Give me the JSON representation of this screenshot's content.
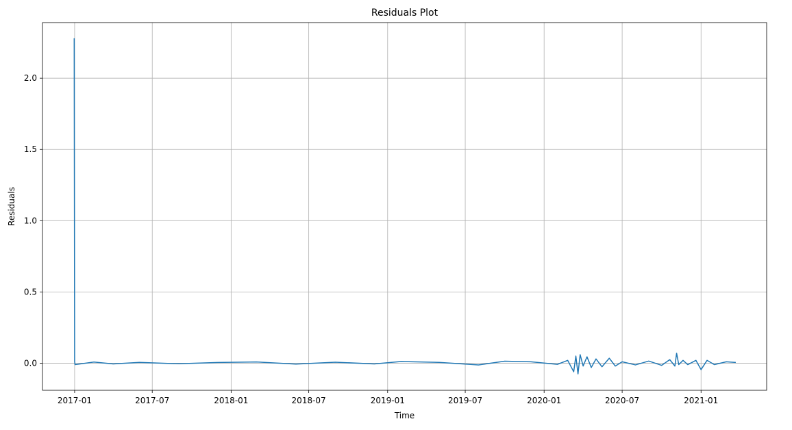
{
  "chart_data": {
    "type": "line",
    "title": "Residuals Plot",
    "xlabel": "Time",
    "ylabel": "Residuals",
    "x_ticks": [
      "2017-01",
      "2017-07",
      "2018-01",
      "2018-07",
      "2019-01",
      "2019-07",
      "2020-01",
      "2020-07",
      "2021-01"
    ],
    "y_ticks": [
      "0.0",
      "0.5",
      "1.0",
      "1.5",
      "2.0"
    ],
    "xlim": [
      "2016-10-18",
      "2021-06-03"
    ],
    "ylim": [
      -0.19,
      2.39
    ],
    "grid": true,
    "legend": "none",
    "color": "#1f77b4",
    "series": [
      {
        "x": [
          "2016-12-31",
          "2017-01-01",
          "2017-01-02",
          "2017-02-15",
          "2017-04-01",
          "2017-06-01",
          "2017-09-01",
          "2017-12-01",
          "2018-03-01",
          "2018-06-01",
          "2018-09-01",
          "2018-12-01",
          "2019-02-01",
          "2019-05-01",
          "2019-08-01",
          "2019-10-01",
          "2019-12-01",
          "2020-02-01",
          "2020-02-25",
          "2020-03-10",
          "2020-03-15",
          "2020-03-20",
          "2020-03-25",
          "2020-04-01",
          "2020-04-10",
          "2020-04-20",
          "2020-05-01",
          "2020-05-15",
          "2020-06-01",
          "2020-06-15",
          "2020-07-01",
          "2020-08-01",
          "2020-09-01",
          "2020-10-01",
          "2020-10-20",
          "2020-11-01",
          "2020-11-05",
          "2020-11-10",
          "2020-11-20",
          "2020-12-01",
          "2020-12-20",
          "2021-01-01",
          "2021-01-15",
          "2021-02-01",
          "2021-03-01",
          "2021-03-23"
        ],
        "y": [
          2.28,
          0.01,
          -0.01,
          0.008,
          -0.005,
          0.006,
          -0.004,
          0.005,
          0.009,
          -0.006,
          0.007,
          -0.005,
          0.012,
          0.006,
          -0.012,
          0.014,
          0.01,
          -0.008,
          0.02,
          -0.06,
          0.05,
          -0.075,
          0.06,
          -0.02,
          0.045,
          -0.03,
          0.03,
          -0.025,
          0.035,
          -0.02,
          0.01,
          -0.012,
          0.015,
          -0.015,
          0.025,
          -0.02,
          0.07,
          -0.01,
          0.02,
          -0.01,
          0.02,
          -0.045,
          0.02,
          -0.01,
          0.01,
          0.005
        ]
      }
    ]
  }
}
